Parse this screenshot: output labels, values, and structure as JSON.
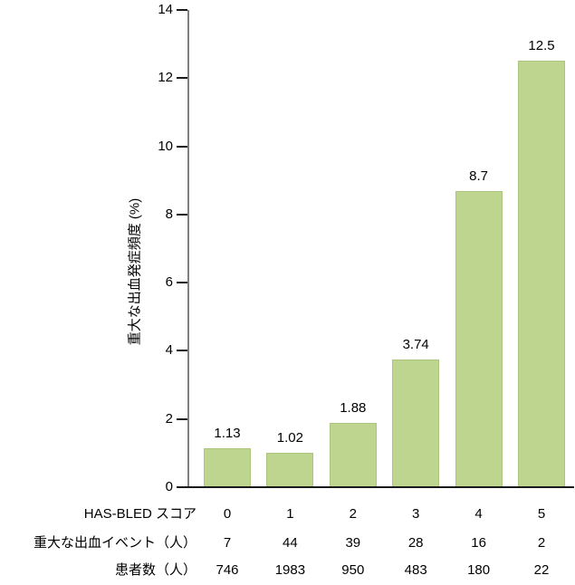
{
  "chart_data": {
    "type": "bar",
    "title": "",
    "ylabel": "重大な出血発症頻度 (%)",
    "xlabel": "",
    "ylim": [
      0,
      14
    ],
    "ytick_step": 2,
    "yticks": [
      "0",
      "2",
      "4",
      "6",
      "8",
      "10",
      "12",
      "14"
    ],
    "grid": false,
    "legend": "none",
    "categories": [
      "0",
      "1",
      "2",
      "3",
      "4",
      "5"
    ],
    "values": [
      1.13,
      1.02,
      1.88,
      3.74,
      8.7,
      12.5
    ],
    "value_labels": [
      "1.13",
      "1.02",
      "1.88",
      "3.74",
      "8.7",
      "12.5"
    ],
    "table_rows": [
      {
        "label": "HAS-BLED スコア",
        "values": [
          "0",
          "1",
          "2",
          "3",
          "4",
          "5"
        ]
      },
      {
        "label": "重大な出血イベント（人）",
        "values": [
          "7",
          "44",
          "39",
          "28",
          "16",
          "2"
        ]
      },
      {
        "label": "患者数（人）",
        "values": [
          "746",
          "1983",
          "950",
          "483",
          "180",
          "22"
        ]
      }
    ]
  },
  "colors": {
    "bar_fill": "#bdd58f",
    "bar_edge": "#abc47e",
    "axis_line": "#808080",
    "tick_and_baseline": "#1a1a1a",
    "text": "#000000",
    "background": "#ffffff"
  }
}
